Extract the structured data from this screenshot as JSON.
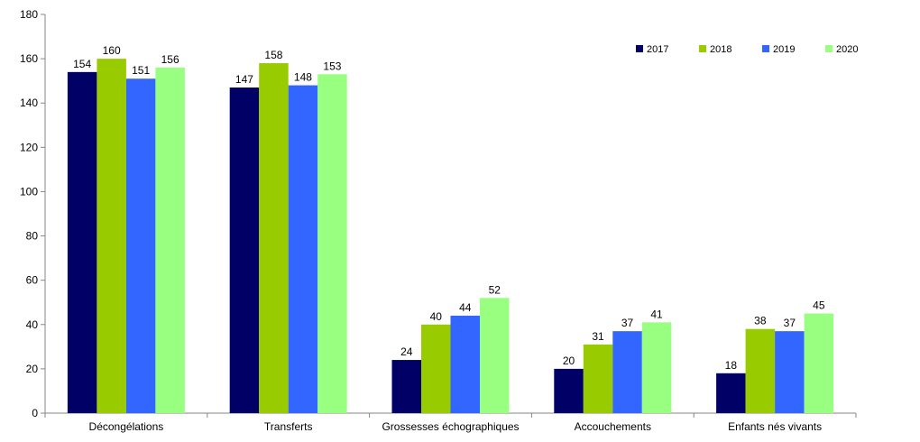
{
  "chart_data": {
    "type": "bar",
    "title": "",
    "xlabel": "",
    "ylabel": "",
    "ylim": [
      0,
      180
    ],
    "yticks": [
      0,
      20,
      40,
      60,
      80,
      100,
      120,
      140,
      160,
      180
    ],
    "grid": false,
    "legend_position": "top-right",
    "categories": [
      "Décongélations",
      "Transferts",
      "Grossesses échographiques",
      "Accouchements",
      "Enfants nés vivants"
    ],
    "series": [
      {
        "name": "2017",
        "color": "#000066",
        "values": [
          154,
          147,
          24,
          20,
          18
        ]
      },
      {
        "name": "2018",
        "color": "#99CC00",
        "values": [
          160,
          158,
          40,
          31,
          38
        ]
      },
      {
        "name": "2019",
        "color": "#3366FF",
        "values": [
          151,
          148,
          44,
          37,
          37
        ]
      },
      {
        "name": "2020",
        "color": "#99FF80",
        "values": [
          156,
          153,
          52,
          41,
          45
        ]
      }
    ]
  }
}
